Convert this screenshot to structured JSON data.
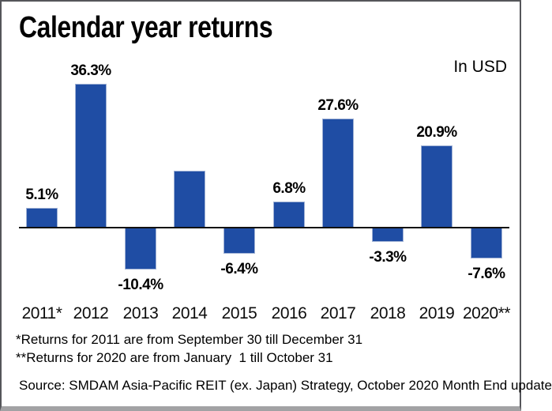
{
  "header": {
    "title": "Calendar year returns",
    "currency_note": "In USD"
  },
  "chart_data": {
    "type": "bar",
    "title": "Calendar year returns",
    "unit": "percent",
    "currency_note": "In USD",
    "categories": [
      "2011*",
      "2012",
      "2013",
      "2014",
      "2015",
      "2016",
      "2017",
      "2018",
      "2019",
      "2020**"
    ],
    "values": [
      5.1,
      36.3,
      -10.4,
      14.5,
      -6.4,
      6.8,
      27.6,
      -3.3,
      20.9,
      -7.6
    ],
    "value_labels": [
      "5.1%",
      "36.3%",
      "-10.4%",
      null,
      "-6.4%",
      "6.8%",
      "27.6%",
      "-3.3%",
      "20.9%",
      "-7.6%"
    ],
    "bar_color": "#1f4da4",
    "axis": {
      "zero_line": true,
      "gridlines": false,
      "y_axis_labels": false
    },
    "legend": "none",
    "ylim": [
      -12,
      40
    ]
  },
  "footnotes": {
    "line1": "*Returns for 2011 are from September 30 till December 31",
    "line2": "**Returns for 2020 are from January  1 till October 31",
    "source": "Source: SMDAM Asia-Pacific REIT (ex. Japan) Strategy, October 2020 Month End update"
  }
}
